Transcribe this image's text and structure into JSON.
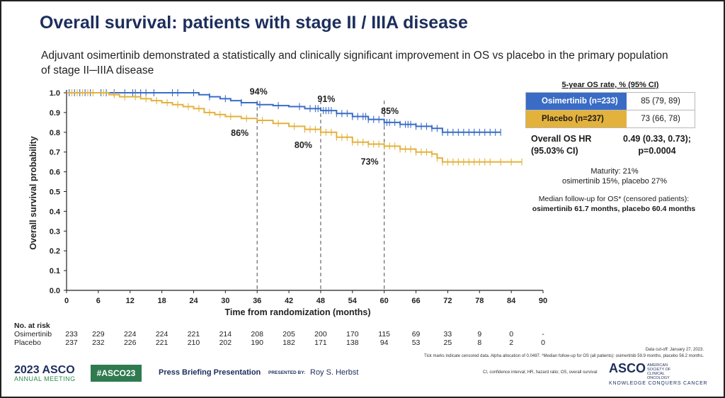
{
  "slide": {
    "title": "Overall survival: patients with stage II / IIIA disease",
    "subtitle": "Adjuvant osimertinib demonstrated a statistically and clinically significant improvement in OS vs placebo in the primary population of stage II─IIIA disease"
  },
  "chart_data": {
    "type": "line",
    "xlabel": "Time from randomization (months)",
    "ylabel": "Overall survival probability",
    "xlim": [
      0,
      90
    ],
    "ylim": [
      0,
      1.0
    ],
    "x_ticks": [
      "0",
      "6",
      "12",
      "18",
      "24",
      "30",
      "36",
      "42",
      "48",
      "54",
      "60",
      "66",
      "72",
      "78",
      "84",
      "90"
    ],
    "y_ticks": [
      "0.0",
      "0.1",
      "0.2",
      "0.3",
      "0.4",
      "0.5",
      "0.6",
      "0.7",
      "0.8",
      "0.9",
      "1.0"
    ],
    "grid": false,
    "reference_lines_x": [
      36,
      48,
      60
    ],
    "series": [
      {
        "name": "Osimertinib (n=233)",
        "color": "#3a6cc6",
        "points": [
          [
            0,
            1.0
          ],
          [
            6,
            1.0
          ],
          [
            12,
            1.0
          ],
          [
            18,
            1.0
          ],
          [
            23,
            1.0
          ],
          [
            25,
            0.99
          ],
          [
            27,
            0.98
          ],
          [
            29,
            0.97
          ],
          [
            31,
            0.96
          ],
          [
            33,
            0.95
          ],
          [
            36,
            0.94
          ],
          [
            39,
            0.935
          ],
          [
            42,
            0.93
          ],
          [
            45,
            0.92
          ],
          [
            48,
            0.91
          ],
          [
            51,
            0.895
          ],
          [
            54,
            0.88
          ],
          [
            57,
            0.865
          ],
          [
            60,
            0.85
          ],
          [
            63,
            0.84
          ],
          [
            66,
            0.83
          ],
          [
            69,
            0.82
          ],
          [
            71,
            0.8
          ],
          [
            82,
            0.8
          ]
        ],
        "censor_x": [
          0.5,
          1.5,
          2.5,
          3.5,
          4.5,
          6.5,
          7.5,
          9,
          11,
          12.5,
          13,
          14,
          15,
          16.5,
          20,
          21,
          24,
          27,
          30,
          33,
          36.5,
          40,
          44,
          46,
          47,
          47.5,
          48.5,
          49,
          49.5,
          50,
          51,
          52,
          53,
          54,
          55,
          56,
          56.5,
          57,
          58,
          59,
          60,
          60.5,
          61,
          62,
          63,
          64,
          64.5,
          65,
          66,
          67,
          68,
          69,
          70,
          71,
          72,
          73,
          74,
          75,
          76,
          77,
          78,
          79,
          80,
          81,
          82
        ]
      },
      {
        "name": "Placebo (n=237)",
        "color": "#e3b23c",
        "points": [
          [
            0,
            1.0
          ],
          [
            6,
            1.0
          ],
          [
            8,
            0.99
          ],
          [
            10,
            0.98
          ],
          [
            12,
            0.98
          ],
          [
            14,
            0.97
          ],
          [
            16,
            0.96
          ],
          [
            18,
            0.95
          ],
          [
            20,
            0.94
          ],
          [
            22,
            0.93
          ],
          [
            24,
            0.92
          ],
          [
            26,
            0.9
          ],
          [
            28,
            0.89
          ],
          [
            30,
            0.88
          ],
          [
            33,
            0.87
          ],
          [
            36,
            0.86
          ],
          [
            39,
            0.845
          ],
          [
            42,
            0.83
          ],
          [
            45,
            0.815
          ],
          [
            48,
            0.8
          ],
          [
            51,
            0.775
          ],
          [
            54,
            0.75
          ],
          [
            57,
            0.74
          ],
          [
            60,
            0.73
          ],
          [
            63,
            0.715
          ],
          [
            66,
            0.7
          ],
          [
            69,
            0.69
          ],
          [
            70,
            0.67
          ],
          [
            71,
            0.65
          ],
          [
            86,
            0.65
          ]
        ],
        "censor_x": [
          1,
          2,
          3,
          4,
          5,
          7,
          9,
          11,
          13,
          15,
          17,
          19,
          21,
          23,
          25,
          27,
          29,
          31,
          34,
          37,
          40,
          43,
          45,
          46,
          47,
          48,
          49,
          50,
          51,
          52,
          53,
          54,
          55,
          56,
          57,
          58,
          59,
          60,
          61,
          62,
          63,
          64,
          65,
          66,
          67,
          68,
          69,
          70,
          71,
          72,
          73,
          74,
          75,
          76,
          77,
          78,
          79,
          80,
          82,
          84,
          86
        ]
      }
    ],
    "annotations": [
      {
        "text": "94%",
        "x": 36,
        "y": 0.94,
        "series": "Osimertinib (n=233)"
      },
      {
        "text": "91%",
        "x": 48,
        "y": 0.91,
        "series": "Osimertinib (n=233)"
      },
      {
        "text": "85%",
        "x": 60,
        "y": 0.85,
        "series": "Osimertinib (n=233)"
      },
      {
        "text": "86%",
        "x": 36,
        "y": 0.86,
        "series": "Placebo (n=237)"
      },
      {
        "text": "80%",
        "x": 48,
        "y": 0.8,
        "series": "Placebo (n=237)"
      },
      {
        "text": "73%",
        "x": 60,
        "y": 0.73,
        "series": "Placebo (n=237)"
      }
    ]
  },
  "at_risk": {
    "title": "No. at risk",
    "rows": [
      {
        "label": "Osimertinib",
        "values": [
          "233",
          "229",
          "224",
          "224",
          "221",
          "214",
          "208",
          "205",
          "200",
          "170",
          "115",
          "69",
          "33",
          "9",
          "0",
          "-"
        ]
      },
      {
        "label": "Placebo",
        "values": [
          "237",
          "232",
          "226",
          "221",
          "210",
          "202",
          "190",
          "182",
          "171",
          "138",
          "94",
          "53",
          "25",
          "8",
          "2",
          "0"
        ]
      }
    ]
  },
  "os_rate": {
    "header": "5-year OS rate, % (95% CI)",
    "rows": [
      {
        "name": "Osimertinib (n=233)",
        "value": "85 (79, 89)",
        "color": "#3a6cc6"
      },
      {
        "name": "Placebo (n=237)",
        "value": "73 (66, 78)",
        "color": "#e3b23c"
      }
    ]
  },
  "hr": {
    "label_line1": "Overall OS HR",
    "label_line2": "(95.03% CI)",
    "value_line1": "0.49 (0.33, 0.73);",
    "value_line2": "p=0.0004"
  },
  "maturity": {
    "line1": "Maturity: 21%",
    "line2": "osimertinib 15%, placebo 27%"
  },
  "followup": {
    "line1": "Median follow-up for OS* (censored patients):",
    "line2": "osimertinib 61.7 months, placebo 60.4 months"
  },
  "footer": {
    "cutoff": "Data cut-off: January 27, 2023.",
    "footnote": "Tick marks indicate censored data. Alpha allocation of 0.0497. *Median follow-up for OS (all patients): osimertinib 59.9 months, placebo 56.2 months.",
    "abbrev": "CI, confidence interval; HR, hazard ratio; OS, overall survival",
    "meeting_year": "2023",
    "meeting_org": "ASCO",
    "meeting_name": "ANNUAL MEETING",
    "hashtag": "#ASCO23",
    "press": "Press Briefing Presentation",
    "presented_by": "PRESENTED BY:",
    "presenter": "Roy S. Herbst",
    "org": "ASCO",
    "org_full": "AMERICAN SOCIETY OF CLINICAL ONCOLOGY",
    "tagline": "KNOWLEDGE CONQUERS CANCER"
  }
}
